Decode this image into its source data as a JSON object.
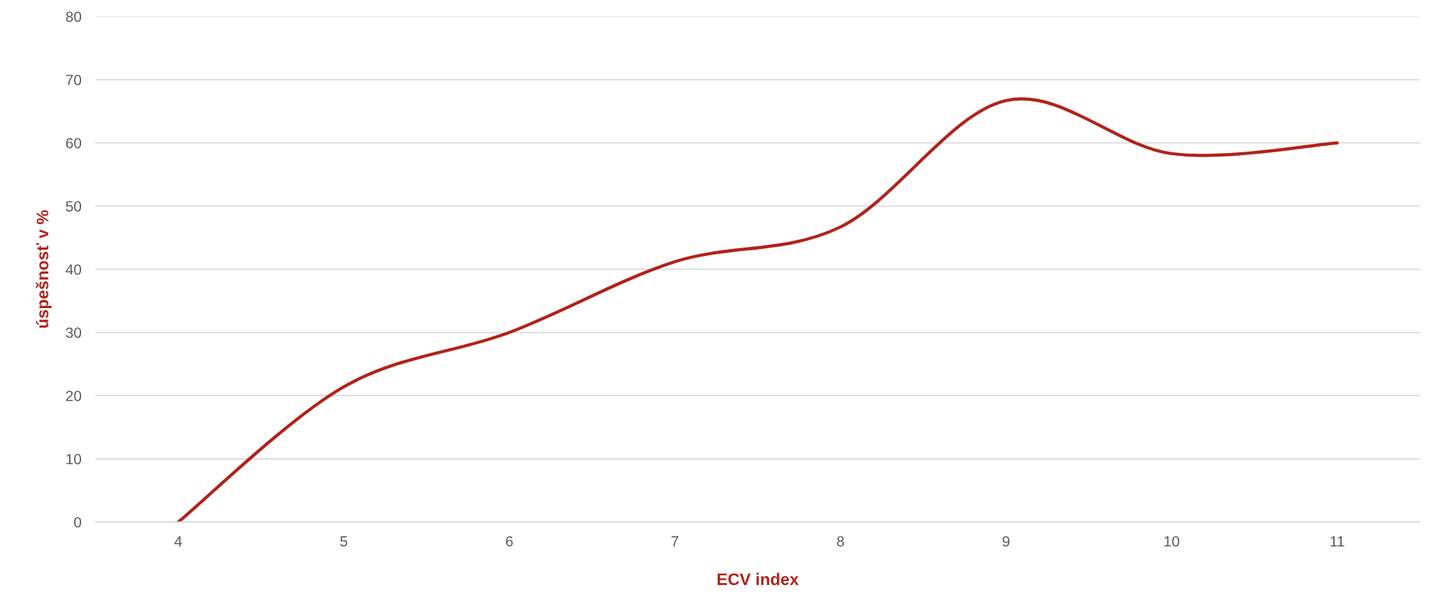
{
  "chart_data": {
    "type": "line",
    "xlabel": "ECV index",
    "ylabel": "úspešnosť v %",
    "categories": [
      "4",
      "5",
      "6",
      "7",
      "8",
      "9",
      "10",
      "11"
    ],
    "series": [
      {
        "color": "#b0231a",
        "values": [
          0,
          21.4,
          30,
          41.2,
          46.7,
          66.7,
          58.3,
          60
        ]
      }
    ],
    "ylim": [
      0,
      80
    ],
    "yticks": [
      0,
      10,
      20,
      30,
      40,
      50,
      60,
      70,
      80
    ],
    "grid": "y",
    "legend": false,
    "marker": "none",
    "line_style": "solid"
  }
}
